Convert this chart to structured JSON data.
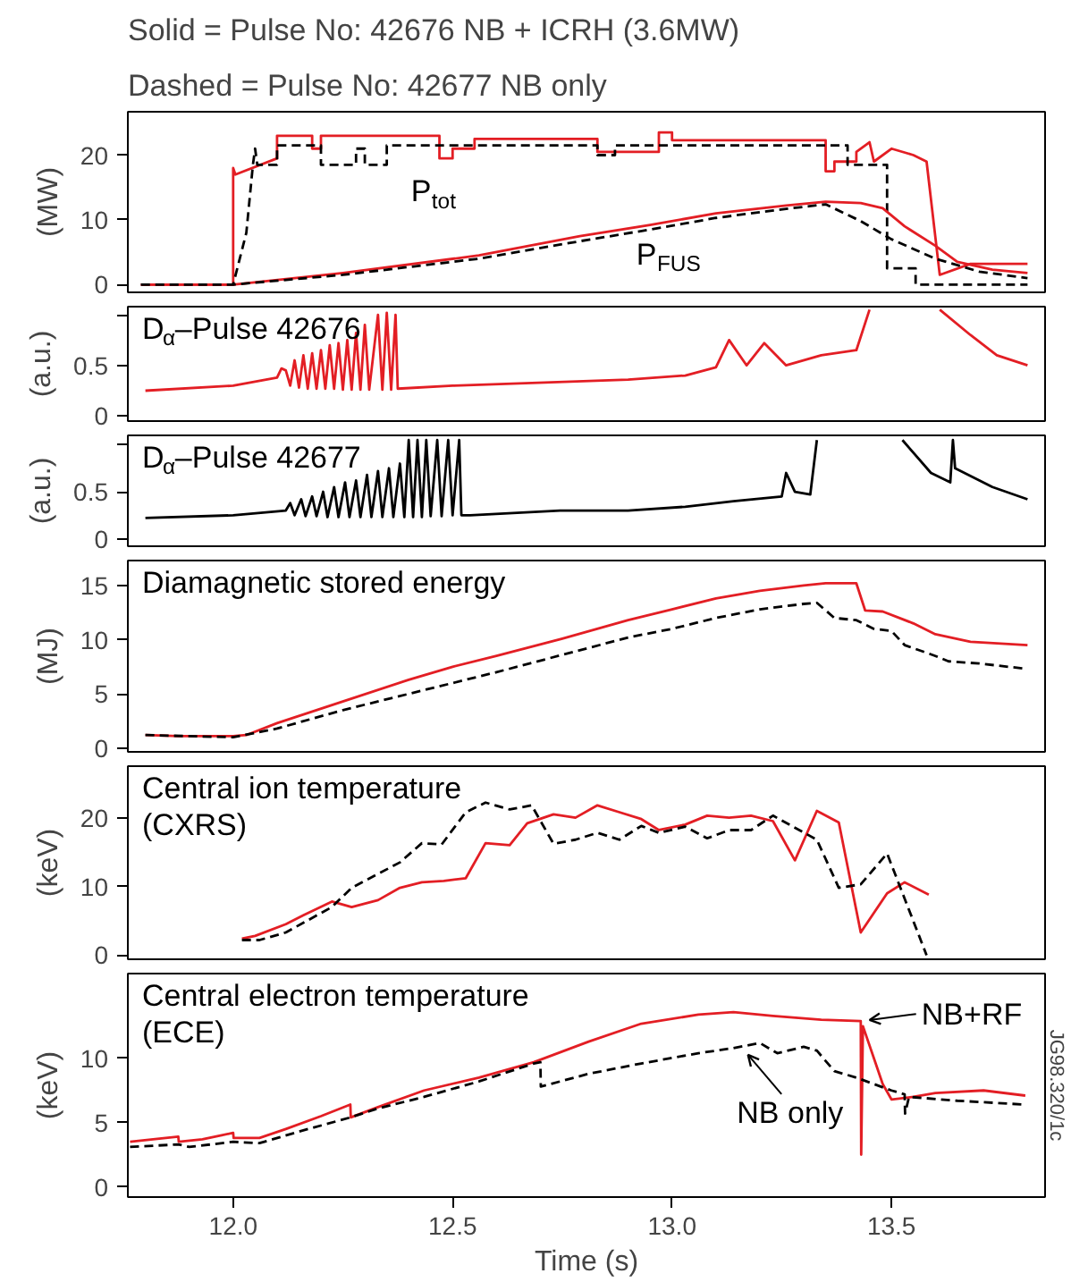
{
  "chart_data": [
    {
      "type": "line",
      "title": "Solid = Pulse No: 42676 NB + ICRH (3.6MW)",
      "subtitle": "Dashed = Pulse No: 42677 NB only",
      "ylabel": "(MW)",
      "xlim": [
        11.76,
        13.85
      ],
      "ylim": [
        -1.2,
        26.7
      ],
      "yticks": [
        0,
        10,
        20
      ],
      "tick_labels": "y",
      "grid": false,
      "annotations": [
        "P$_{tot}$",
        "P$_{FUS}$"
      ],
      "series": [
        {
          "color": "#e31e24",
          "line_style": "solid",
          "x": [
            11.79,
            12.0,
            12.0,
            12.005,
            12.1,
            12.1,
            12.18,
            12.18,
            12.2,
            12.2,
            12.47,
            12.47,
            12.5,
            12.5,
            12.55,
            12.55,
            12.83,
            12.83,
            12.97,
            12.97,
            13.0,
            13.0,
            13.35,
            13.35,
            13.37,
            13.37,
            13.42,
            13.42,
            13.45,
            13.46,
            13.5,
            13.55,
            13.58,
            13.61,
            13.68,
            13.81
          ],
          "values": [
            0,
            0,
            18,
            17,
            19.5,
            23,
            23,
            21,
            21,
            23,
            23,
            19.5,
            19.5,
            21,
            21,
            22.5,
            22.5,
            20.5,
            20.5,
            23.5,
            23.5,
            22.3,
            22.3,
            17.5,
            17.5,
            19,
            19,
            20.5,
            22,
            19,
            21,
            20,
            19,
            1.5,
            3.2,
            3.2
          ]
        },
        {
          "color": "#000000",
          "line_style": "dashed",
          "x": [
            11.79,
            12.0,
            12.03,
            12.045,
            12.05,
            12.055,
            12.1,
            12.1,
            12.2,
            12.2,
            12.28,
            12.28,
            12.3,
            12.3,
            12.35,
            12.35,
            12.83,
            12.83,
            12.87,
            12.87,
            13.4,
            13.4,
            13.49,
            13.49,
            13.555,
            13.555,
            13.81
          ],
          "values": [
            0,
            0,
            8,
            18.5,
            21,
            18.5,
            18.5,
            21.5,
            21.5,
            18.5,
            18.5,
            21,
            21,
            18.5,
            18.5,
            21.5,
            21.5,
            20,
            20,
            21.5,
            21.5,
            18.5,
            18.5,
            2.5,
            2.5,
            0,
            0
          ]
        },
        {
          "color": "#e31e24",
          "line_style": "solid",
          "x": [
            11.79,
            12.0,
            12.25,
            12.56,
            12.79,
            12.95,
            13.1,
            13.26,
            13.35,
            13.43,
            13.48,
            13.53,
            13.6,
            13.65,
            13.73,
            13.81
          ],
          "values": [
            0,
            0,
            1.8,
            4.5,
            7.5,
            9.2,
            11,
            12.2,
            12.8,
            12.6,
            11.8,
            9,
            6,
            3.5,
            2.3,
            1.8
          ]
        },
        {
          "color": "#000000",
          "line_style": "dashed",
          "x": [
            11.79,
            12.0,
            12.25,
            12.56,
            12.79,
            12.95,
            13.1,
            13.26,
            13.35,
            13.43,
            13.5,
            13.6,
            13.7,
            13.81
          ],
          "values": [
            0,
            0,
            1.5,
            4,
            6.7,
            8.5,
            10.3,
            11.7,
            12.4,
            9.8,
            7,
            4,
            2,
            1
          ]
        }
      ]
    },
    {
      "type": "line",
      "title": "D$_{α}$–Pulse 42676",
      "ylabel": "(a.u.)",
      "xlim": [
        11.76,
        13.85
      ],
      "ylim": [
        -0.05,
        1.08
      ],
      "yticks": [
        0,
        0.5,
        {
          "value": 1.0,
          "label": null
        }
      ],
      "tick_labels": "y",
      "grid": false,
      "series": [
        {
          "color": "#e31e24",
          "line_style": "solid",
          "x": [
            11.8,
            12.0,
            12.1,
            12.11,
            12.12,
            12.13,
            12.14,
            12.15,
            12.16,
            12.17,
            12.18,
            12.19,
            12.2,
            12.21,
            12.22,
            12.23,
            12.24,
            12.25,
            12.26,
            12.27,
            12.28,
            12.29,
            12.3,
            12.31,
            12.33,
            12.34,
            12.35,
            12.36,
            12.37,
            12.375,
            12.5,
            12.71,
            12.9,
            13.03,
            13.1,
            13.13,
            13.17,
            13.21,
            13.26,
            13.34,
            13.42,
            13.45,
            13.53,
            13.61,
            13.68,
            13.74,
            13.81
          ],
          "values": [
            0.25,
            0.3,
            0.38,
            0.47,
            0.45,
            0.3,
            0.55,
            0.28,
            0.6,
            0.27,
            0.62,
            0.27,
            0.65,
            0.27,
            0.7,
            0.27,
            0.72,
            0.26,
            0.75,
            0.26,
            0.82,
            0.26,
            0.9,
            0.26,
            1.0,
            0.26,
            1.02,
            0.26,
            1.0,
            0.27,
            0.3,
            0.33,
            0.36,
            0.4,
            0.48,
            0.75,
            0.5,
            0.72,
            0.5,
            0.6,
            0.65,
            1.05,
            null,
            1.05,
            0.8,
            0.6,
            0.5
          ]
        }
      ]
    },
    {
      "type": "line",
      "title": "D$_{α}$–Pulse 42677",
      "ylabel": "(a.u.)",
      "xlim": [
        11.76,
        13.85
      ],
      "ylim": [
        -0.08,
        1.1
      ],
      "yticks": [
        0,
        0.5,
        {
          "value": 1.0,
          "label": null
        }
      ],
      "tick_labels": "y",
      "grid": false,
      "series": [
        {
          "color": "#000000",
          "line_style": "solid",
          "x": [
            11.8,
            12.0,
            12.12,
            12.13,
            12.14,
            12.155,
            12.165,
            12.18,
            12.19,
            12.205,
            12.215,
            12.23,
            12.24,
            12.255,
            12.265,
            12.28,
            12.29,
            12.305,
            12.315,
            12.33,
            12.34,
            12.355,
            12.365,
            12.38,
            12.39,
            12.4,
            12.41,
            12.42,
            12.43,
            12.44,
            12.45,
            12.465,
            12.475,
            12.49,
            12.5,
            12.515,
            12.52,
            12.54,
            12.745,
            12.9,
            13.03,
            13.14,
            13.25,
            13.26,
            13.28,
            13.315,
            13.33,
            13.43,
            13.525,
            13.59,
            13.634,
            13.64,
            13.645,
            13.73,
            13.81
          ],
          "values": [
            0.22,
            0.25,
            0.3,
            0.38,
            0.25,
            0.42,
            0.24,
            0.45,
            0.24,
            0.5,
            0.23,
            0.55,
            0.23,
            0.6,
            0.23,
            0.62,
            0.23,
            0.68,
            0.23,
            0.72,
            0.23,
            0.75,
            0.23,
            0.8,
            0.23,
            1.05,
            0.23,
            1.05,
            0.23,
            1.05,
            0.24,
            1.05,
            0.24,
            1.05,
            0.25,
            1.05,
            0.25,
            0.25,
            0.3,
            0.3,
            0.34,
            0.4,
            0.45,
            0.7,
            0.5,
            0.47,
            1.05,
            null,
            1.05,
            0.7,
            0.6,
            1.05,
            0.75,
            0.55,
            0.42
          ]
        }
      ]
    },
    {
      "type": "line",
      "title": "Diamagnetic stored energy",
      "ylabel": "(MJ)",
      "xlim": [
        11.76,
        13.85
      ],
      "ylim": [
        -0.35,
        17.3
      ],
      "yticks": [
        0,
        5,
        10,
        15
      ],
      "tick_labels": "y",
      "grid": false,
      "series": [
        {
          "color": "#e31e24",
          "line_style": "solid",
          "x": [
            11.8,
            11.875,
            12.0,
            12.03,
            12.1,
            12.25,
            12.4,
            12.5,
            12.6,
            12.75,
            12.9,
            13.0,
            13.1,
            13.2,
            13.3,
            13.35,
            13.42,
            13.44,
            13.48,
            13.55,
            13.6,
            13.68,
            13.81
          ],
          "values": [
            1.2,
            1.1,
            1.1,
            1.2,
            2.3,
            4.3,
            6.3,
            7.5,
            8.5,
            10.1,
            11.8,
            12.8,
            13.8,
            14.5,
            15,
            15.2,
            15.2,
            12.7,
            12.6,
            11.5,
            10.5,
            9.8,
            9.5
          ]
        },
        {
          "color": "#000000",
          "line_style": "dashed",
          "x": [
            11.8,
            11.9,
            12.0,
            12.1,
            12.25,
            12.4,
            12.5,
            12.6,
            12.75,
            12.9,
            13.0,
            13.1,
            13.2,
            13.3,
            13.33,
            13.37,
            13.42,
            13.46,
            13.5,
            13.53,
            13.6,
            13.63,
            13.7,
            13.81
          ],
          "values": [
            1.2,
            1.1,
            1.0,
            1.8,
            3.5,
            5,
            6,
            7,
            8.6,
            10.2,
            11,
            12,
            12.8,
            13.3,
            13.4,
            12,
            11.8,
            11,
            10.8,
            9.5,
            8.5,
            8,
            7.8,
            7.3
          ]
        }
      ]
    },
    {
      "type": "line",
      "title": "Central ion temperature\n(CXRS)",
      "ylabel": "(keV)",
      "xlim": [
        11.76,
        13.85
      ],
      "ylim": [
        -0.6,
        27.5
      ],
      "yticks": [
        0,
        10,
        20
      ],
      "tick_labels": "y",
      "grid": false,
      "series": [
        {
          "color": "#e31e24",
          "line_style": "solid",
          "x": [
            12.02,
            12.05,
            12.12,
            12.16,
            12.225,
            12.27,
            12.33,
            12.38,
            12.43,
            12.48,
            12.53,
            12.575,
            12.63,
            12.67,
            12.73,
            12.78,
            12.83,
            12.88,
            12.93,
            12.97,
            13.03,
            13.08,
            13.13,
            13.18,
            13.23,
            13.28,
            13.33,
            13.38,
            13.43,
            13.49,
            13.53,
            13.585
          ],
          "values": [
            2.4,
            2.8,
            4.5,
            5.8,
            7.8,
            7,
            8,
            9.8,
            10.6,
            10.8,
            11.2,
            16.3,
            16,
            19.2,
            20.5,
            20,
            21.8,
            20.8,
            19.8,
            18.2,
            19,
            20.3,
            20,
            20.3,
            19.5,
            13.8,
            21,
            19.3,
            3.3,
            9,
            10.6,
            8.8
          ]
        },
        {
          "color": "#000000",
          "line_style": "dashed",
          "x": [
            12.02,
            12.06,
            12.12,
            12.225,
            12.27,
            12.38,
            12.43,
            12.475,
            12.53,
            12.575,
            12.63,
            12.68,
            12.73,
            12.78,
            12.83,
            12.88,
            12.93,
            12.97,
            13.03,
            13.08,
            13.13,
            13.18,
            13.23,
            13.33,
            13.38,
            13.43,
            13.49,
            13.58
          ],
          "values": [
            2.2,
            2.2,
            3.3,
            7,
            9.8,
            13.5,
            16.3,
            16.1,
            20.8,
            22.2,
            21.2,
            21.8,
            16.2,
            16.8,
            17.8,
            16.8,
            18.8,
            17.8,
            18.7,
            17,
            18.2,
            18.2,
            20.3,
            16.8,
            9.8,
            10.3,
            14.8,
            0
          ]
        }
      ]
    },
    {
      "type": "line",
      "title": "Central electron temperature\n(ECE)",
      "xlabel": "Time (s)",
      "ylabel": "(keV)",
      "xlim": [
        11.76,
        13.85
      ],
      "ylim": [
        -0.8,
        16.6
      ],
      "xticks": [
        {
          "value": 12,
          "label": "12.0"
        },
        12.5,
        {
          "value": 13,
          "label": "13.0"
        },
        13.5
      ],
      "yticks": [
        0,
        5,
        10
      ],
      "grid": false,
      "annotations": [
        {
          "text": "NB+RF",
          "x": 13.43,
          "y": 12.9
        },
        {
          "text": "NB only",
          "x": 13.16,
          "y": 10.8
        },
        "JG98.320/1c"
      ],
      "series": [
        {
          "color": "#e31e24",
          "line_style": "solid",
          "x": [
            11.765,
            11.875,
            11.876,
            11.93,
            12.0,
            12.001,
            12.06,
            12.12,
            12.2,
            12.267,
            12.268,
            12.33,
            12.435,
            12.56,
            12.685,
            12.81,
            12.93,
            13.06,
            13.14,
            13.23,
            13.34,
            13.43,
            13.431,
            13.435,
            13.46,
            13.48,
            13.5,
            13.55,
            13.6,
            13.71,
            13.805
          ],
          "values": [
            3.5,
            3.9,
            3.5,
            3.7,
            4.2,
            3.8,
            3.8,
            4.5,
            5.5,
            6.4,
            5.4,
            6.2,
            7.5,
            8.5,
            9.7,
            11.3,
            12.7,
            13.4,
            13.6,
            13.3,
            13,
            12.9,
            2.5,
            12.5,
            10,
            8,
            6.8,
            7.0,
            7.3,
            7.5,
            7.1
          ]
        },
        {
          "color": "#000000",
          "line_style": "dashed",
          "x": [
            11.765,
            11.875,
            11.9,
            12.0,
            12.06,
            12.15,
            12.267,
            12.33,
            12.435,
            12.56,
            12.685,
            12.7,
            12.701,
            12.81,
            12.93,
            13.06,
            13.14,
            13.2,
            13.24,
            13.3,
            13.33,
            13.37,
            13.42,
            13.5,
            13.53,
            13.531,
            13.54,
            13.65,
            13.805
          ],
          "values": [
            3.1,
            3.3,
            3.1,
            3.5,
            3.4,
            4.3,
            5.4,
            6.1,
            7.0,
            8.2,
            9.6,
            9.7,
            7.8,
            8.8,
            9.6,
            10.4,
            10.8,
            11.2,
            10.4,
            10.9,
            10.6,
            9,
            8.5,
            7.5,
            7.2,
            5.7,
            7.0,
            6.7,
            6.4
          ]
        }
      ]
    }
  ]
}
